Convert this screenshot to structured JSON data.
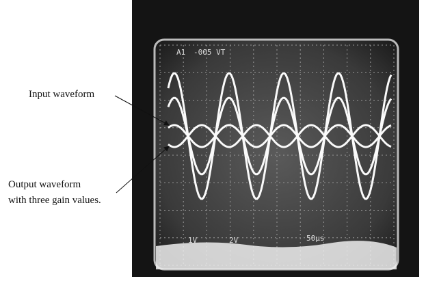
{
  "annotations": {
    "input": "Input waveform",
    "output_line1": "Output waveform",
    "output_line2": "with three gain values."
  },
  "scope": {
    "top_left": "A1",
    "top_value": "-005 VT",
    "ch1": "1V",
    "ch2": "2V",
    "timebase": "50µs"
  }
}
